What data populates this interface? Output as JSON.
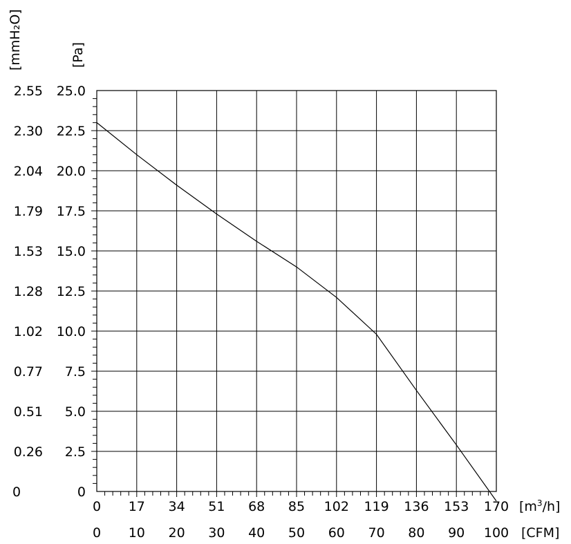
{
  "chart_data": {
    "type": "line",
    "title": "",
    "x_axis_primary": {
      "unit_prefix": "[m",
      "unit_sup": "3",
      "unit_suffix": "/h]",
      "range": [
        0,
        170
      ],
      "ticks": [
        "0",
        "17",
        "34",
        "51",
        "68",
        "85",
        "102",
        "119",
        "136",
        "153",
        "170"
      ]
    },
    "x_axis_secondary": {
      "unit": "[CFM]",
      "ticks": [
        "0",
        "10",
        "20",
        "30",
        "40",
        "50",
        "60",
        "70",
        "80",
        "90",
        "100"
      ]
    },
    "y_axis_primary": {
      "unit": "[Pa]",
      "range": [
        0,
        25
      ],
      "ticks": [
        "0",
        "2.5",
        "5.0",
        "7.5",
        "10.0",
        "12.5",
        "15.0",
        "17.5",
        "20.0",
        "22.5",
        "25.0"
      ]
    },
    "y_axis_secondary": {
      "unit": "[mmH₂O]",
      "ticks": [
        "0",
        "0.26",
        "0.51",
        "0.77",
        "1.02",
        "1.28",
        "1.53",
        "1.79",
        "2.04",
        "2.30",
        "2.55"
      ]
    },
    "grid": true,
    "series": [
      {
        "x": [
          0,
          17,
          34,
          51,
          68,
          85,
          102,
          119,
          136,
          153,
          170
        ],
        "y": [
          23.0,
          21.0,
          19.1,
          17.3,
          15.6,
          14.0,
          12.1,
          9.8,
          6.3,
          2.9,
          -0.6
        ]
      }
    ]
  }
}
